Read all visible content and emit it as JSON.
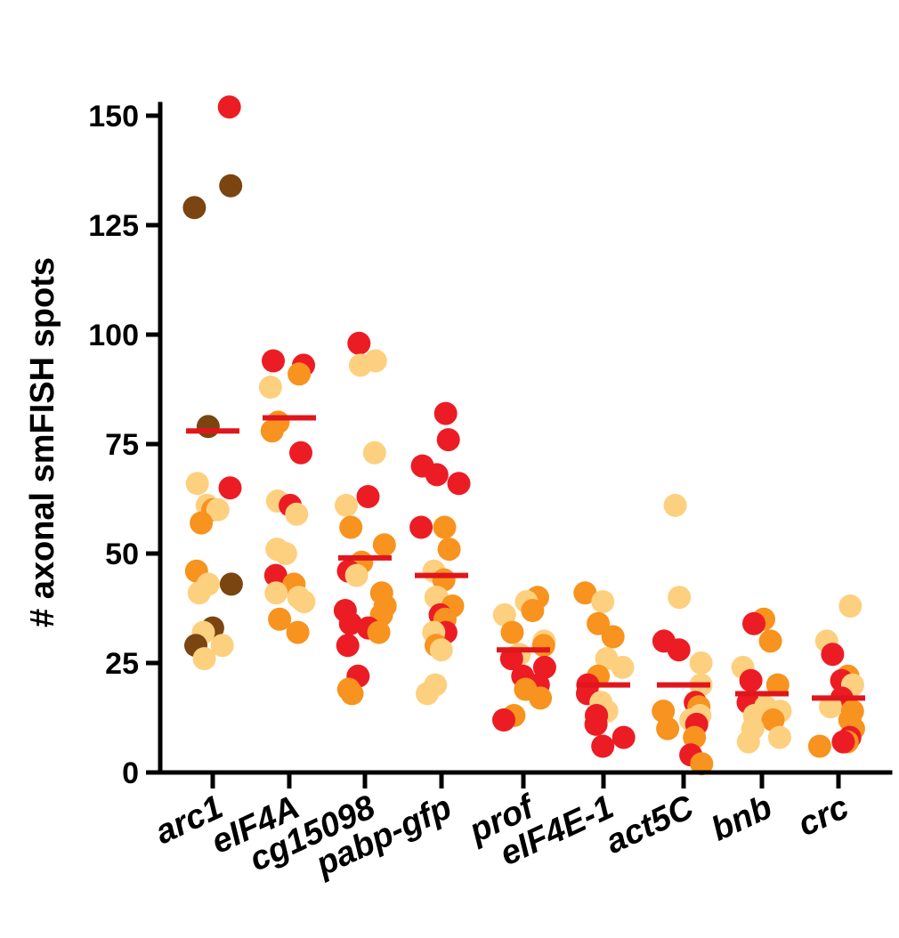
{
  "chart_data": {
    "type": "scatter",
    "title": "",
    "xlabel": "",
    "ylabel": "#  axonal smFISH spots",
    "ylim": [
      0,
      150
    ],
    "yticks": [
      0,
      25,
      50,
      75,
      100,
      125,
      150
    ],
    "grid": false,
    "legend": "none",
    "colors": {
      "red": "#ec1c24",
      "orange": "#f7931e",
      "tan": "#fdd07f",
      "brown": "#7a4511",
      "mean": "#e0161c"
    },
    "categories": [
      "arc1",
      "eIF4A",
      "cg15098",
      "pabp-gfp",
      "prof",
      "eIF4E-1",
      "act5C",
      "bnb",
      "crc"
    ],
    "groups": [
      {
        "name": "arc1",
        "mean": 78,
        "points": [
          {
            "y": 152,
            "c": "red"
          },
          {
            "y": 134,
            "c": "brown"
          },
          {
            "y": 129,
            "c": "brown"
          },
          {
            "y": 79,
            "c": "brown"
          },
          {
            "y": 65,
            "c": "red"
          },
          {
            "y": 66,
            "c": "tan"
          },
          {
            "y": 61,
            "c": "tan"
          },
          {
            "y": 60,
            "c": "orange"
          },
          {
            "y": 60,
            "c": "tan"
          },
          {
            "y": 57,
            "c": "orange"
          },
          {
            "y": 46,
            "c": "orange"
          },
          {
            "y": 43,
            "c": "brown"
          },
          {
            "y": 43,
            "c": "tan"
          },
          {
            "y": 41,
            "c": "tan"
          },
          {
            "y": 33,
            "c": "brown"
          },
          {
            "y": 32,
            "c": "tan"
          },
          {
            "y": 29,
            "c": "brown"
          },
          {
            "y": 29,
            "c": "tan"
          },
          {
            "y": 26,
            "c": "tan"
          }
        ]
      },
      {
        "name": "eIF4A",
        "mean": 81,
        "points": [
          {
            "y": 94,
            "c": "red"
          },
          {
            "y": 93,
            "c": "red"
          },
          {
            "y": 91,
            "c": "orange"
          },
          {
            "y": 88,
            "c": "tan"
          },
          {
            "y": 80,
            "c": "orange"
          },
          {
            "y": 78,
            "c": "orange"
          },
          {
            "y": 73,
            "c": "red"
          },
          {
            "y": 62,
            "c": "tan"
          },
          {
            "y": 61,
            "c": "red"
          },
          {
            "y": 59,
            "c": "tan"
          },
          {
            "y": 51,
            "c": "tan"
          },
          {
            "y": 50,
            "c": "tan"
          },
          {
            "y": 45,
            "c": "red"
          },
          {
            "y": 43,
            "c": "orange"
          },
          {
            "y": 41,
            "c": "tan"
          },
          {
            "y": 40,
            "c": "tan"
          },
          {
            "y": 39,
            "c": "tan"
          },
          {
            "y": 35,
            "c": "orange"
          },
          {
            "y": 32,
            "c": "orange"
          }
        ]
      },
      {
        "name": "cg15098",
        "mean": 49,
        "points": [
          {
            "y": 98,
            "c": "red"
          },
          {
            "y": 94,
            "c": "tan"
          },
          {
            "y": 93,
            "c": "tan"
          },
          {
            "y": 73,
            "c": "tan"
          },
          {
            "y": 63,
            "c": "red"
          },
          {
            "y": 61,
            "c": "tan"
          },
          {
            "y": 56,
            "c": "orange"
          },
          {
            "y": 52,
            "c": "orange"
          },
          {
            "y": 48,
            "c": "orange"
          },
          {
            "y": 46,
            "c": "red"
          },
          {
            "y": 45,
            "c": "tan"
          },
          {
            "y": 41,
            "c": "orange"
          },
          {
            "y": 38,
            "c": "orange"
          },
          {
            "y": 37,
            "c": "red"
          },
          {
            "y": 36,
            "c": "orange"
          },
          {
            "y": 34,
            "c": "red"
          },
          {
            "y": 33,
            "c": "red"
          },
          {
            "y": 32,
            "c": "orange"
          },
          {
            "y": 29,
            "c": "red"
          },
          {
            "y": 22,
            "c": "red"
          },
          {
            "y": 19,
            "c": "orange"
          },
          {
            "y": 18,
            "c": "orange"
          }
        ]
      },
      {
        "name": "pabp-gfp",
        "mean": 45,
        "points": [
          {
            "y": 82,
            "c": "red"
          },
          {
            "y": 76,
            "c": "red"
          },
          {
            "y": 70,
            "c": "red"
          },
          {
            "y": 68,
            "c": "red"
          },
          {
            "y": 66,
            "c": "red"
          },
          {
            "y": 56,
            "c": "red"
          },
          {
            "y": 56,
            "c": "orange"
          },
          {
            "y": 51,
            "c": "orange"
          },
          {
            "y": 46,
            "c": "tan"
          },
          {
            "y": 44,
            "c": "orange"
          },
          {
            "y": 40,
            "c": "tan"
          },
          {
            "y": 40,
            "c": "tan"
          },
          {
            "y": 38,
            "c": "orange"
          },
          {
            "y": 36,
            "c": "red"
          },
          {
            "y": 35,
            "c": "orange"
          },
          {
            "y": 32,
            "c": "red"
          },
          {
            "y": 32,
            "c": "tan"
          },
          {
            "y": 29,
            "c": "orange"
          },
          {
            "y": 28,
            "c": "tan"
          },
          {
            "y": 20,
            "c": "tan"
          },
          {
            "y": 18,
            "c": "tan"
          }
        ]
      },
      {
        "name": "prof",
        "mean": 28,
        "points": [
          {
            "y": 40,
            "c": "orange"
          },
          {
            "y": 39,
            "c": "tan"
          },
          {
            "y": 37,
            "c": "orange"
          },
          {
            "y": 36,
            "c": "tan"
          },
          {
            "y": 32,
            "c": "orange"
          },
          {
            "y": 30,
            "c": "tan"
          },
          {
            "y": 29,
            "c": "orange"
          },
          {
            "y": 27,
            "c": "tan"
          },
          {
            "y": 26,
            "c": "red"
          },
          {
            "y": 24,
            "c": "red"
          },
          {
            "y": 22,
            "c": "red"
          },
          {
            "y": 20,
            "c": "red"
          },
          {
            "y": 19,
            "c": "orange"
          },
          {
            "y": 17,
            "c": "orange"
          },
          {
            "y": 13,
            "c": "orange"
          },
          {
            "y": 12,
            "c": "red"
          }
        ]
      },
      {
        "name": "eIF4E-1",
        "mean": 20,
        "points": [
          {
            "y": 41,
            "c": "orange"
          },
          {
            "y": 39,
            "c": "tan"
          },
          {
            "y": 34,
            "c": "orange"
          },
          {
            "y": 31,
            "c": "orange"
          },
          {
            "y": 26,
            "c": "tan"
          },
          {
            "y": 24,
            "c": "tan"
          },
          {
            "y": 22,
            "c": "orange"
          },
          {
            "y": 20,
            "c": "red"
          },
          {
            "y": 18,
            "c": "red"
          },
          {
            "y": 16,
            "c": "tan"
          },
          {
            "y": 14,
            "c": "tan"
          },
          {
            "y": 13,
            "c": "orange"
          },
          {
            "y": 13,
            "c": "red"
          },
          {
            "y": 11,
            "c": "red"
          },
          {
            "y": 8,
            "c": "red"
          },
          {
            "y": 6,
            "c": "red"
          }
        ]
      },
      {
        "name": "act5C",
        "mean": 20,
        "points": [
          {
            "y": 61,
            "c": "tan"
          },
          {
            "y": 40,
            "c": "tan"
          },
          {
            "y": 30,
            "c": "red"
          },
          {
            "y": 28,
            "c": "red"
          },
          {
            "y": 25,
            "c": "tan"
          },
          {
            "y": 20,
            "c": "tan"
          },
          {
            "y": 16,
            "c": "red"
          },
          {
            "y": 15,
            "c": "orange"
          },
          {
            "y": 14,
            "c": "orange"
          },
          {
            "y": 13,
            "c": "tan"
          },
          {
            "y": 12,
            "c": "tan"
          },
          {
            "y": 11,
            "c": "red"
          },
          {
            "y": 10,
            "c": "orange"
          },
          {
            "y": 8,
            "c": "orange"
          },
          {
            "y": 4,
            "c": "red"
          },
          {
            "y": 2,
            "c": "orange"
          }
        ]
      },
      {
        "name": "bnb",
        "mean": 18,
        "points": [
          {
            "y": 35,
            "c": "orange"
          },
          {
            "y": 34,
            "c": "red"
          },
          {
            "y": 30,
            "c": "orange"
          },
          {
            "y": 24,
            "c": "tan"
          },
          {
            "y": 21,
            "c": "red"
          },
          {
            "y": 20,
            "c": "orange"
          },
          {
            "y": 16,
            "c": "red"
          },
          {
            "y": 15,
            "c": "tan"
          },
          {
            "y": 14,
            "c": "tan"
          },
          {
            "y": 13,
            "c": "tan"
          },
          {
            "y": 12,
            "c": "orange"
          },
          {
            "y": 10,
            "c": "tan"
          },
          {
            "y": 8,
            "c": "tan"
          },
          {
            "y": 7,
            "c": "tan"
          }
        ]
      },
      {
        "name": "crc",
        "mean": 17,
        "points": [
          {
            "y": 38,
            "c": "tan"
          },
          {
            "y": 30,
            "c": "tan"
          },
          {
            "y": 27,
            "c": "red"
          },
          {
            "y": 22,
            "c": "orange"
          },
          {
            "y": 21,
            "c": "red"
          },
          {
            "y": 20,
            "c": "tan"
          },
          {
            "y": 17,
            "c": "red"
          },
          {
            "y": 15,
            "c": "tan"
          },
          {
            "y": 14,
            "c": "orange"
          },
          {
            "y": 12,
            "c": "orange"
          },
          {
            "y": 10,
            "c": "orange"
          },
          {
            "y": 8,
            "c": "red"
          },
          {
            "y": 7,
            "c": "orange"
          },
          {
            "y": 7,
            "c": "red"
          },
          {
            "y": 6,
            "c": "orange"
          }
        ]
      }
    ]
  }
}
